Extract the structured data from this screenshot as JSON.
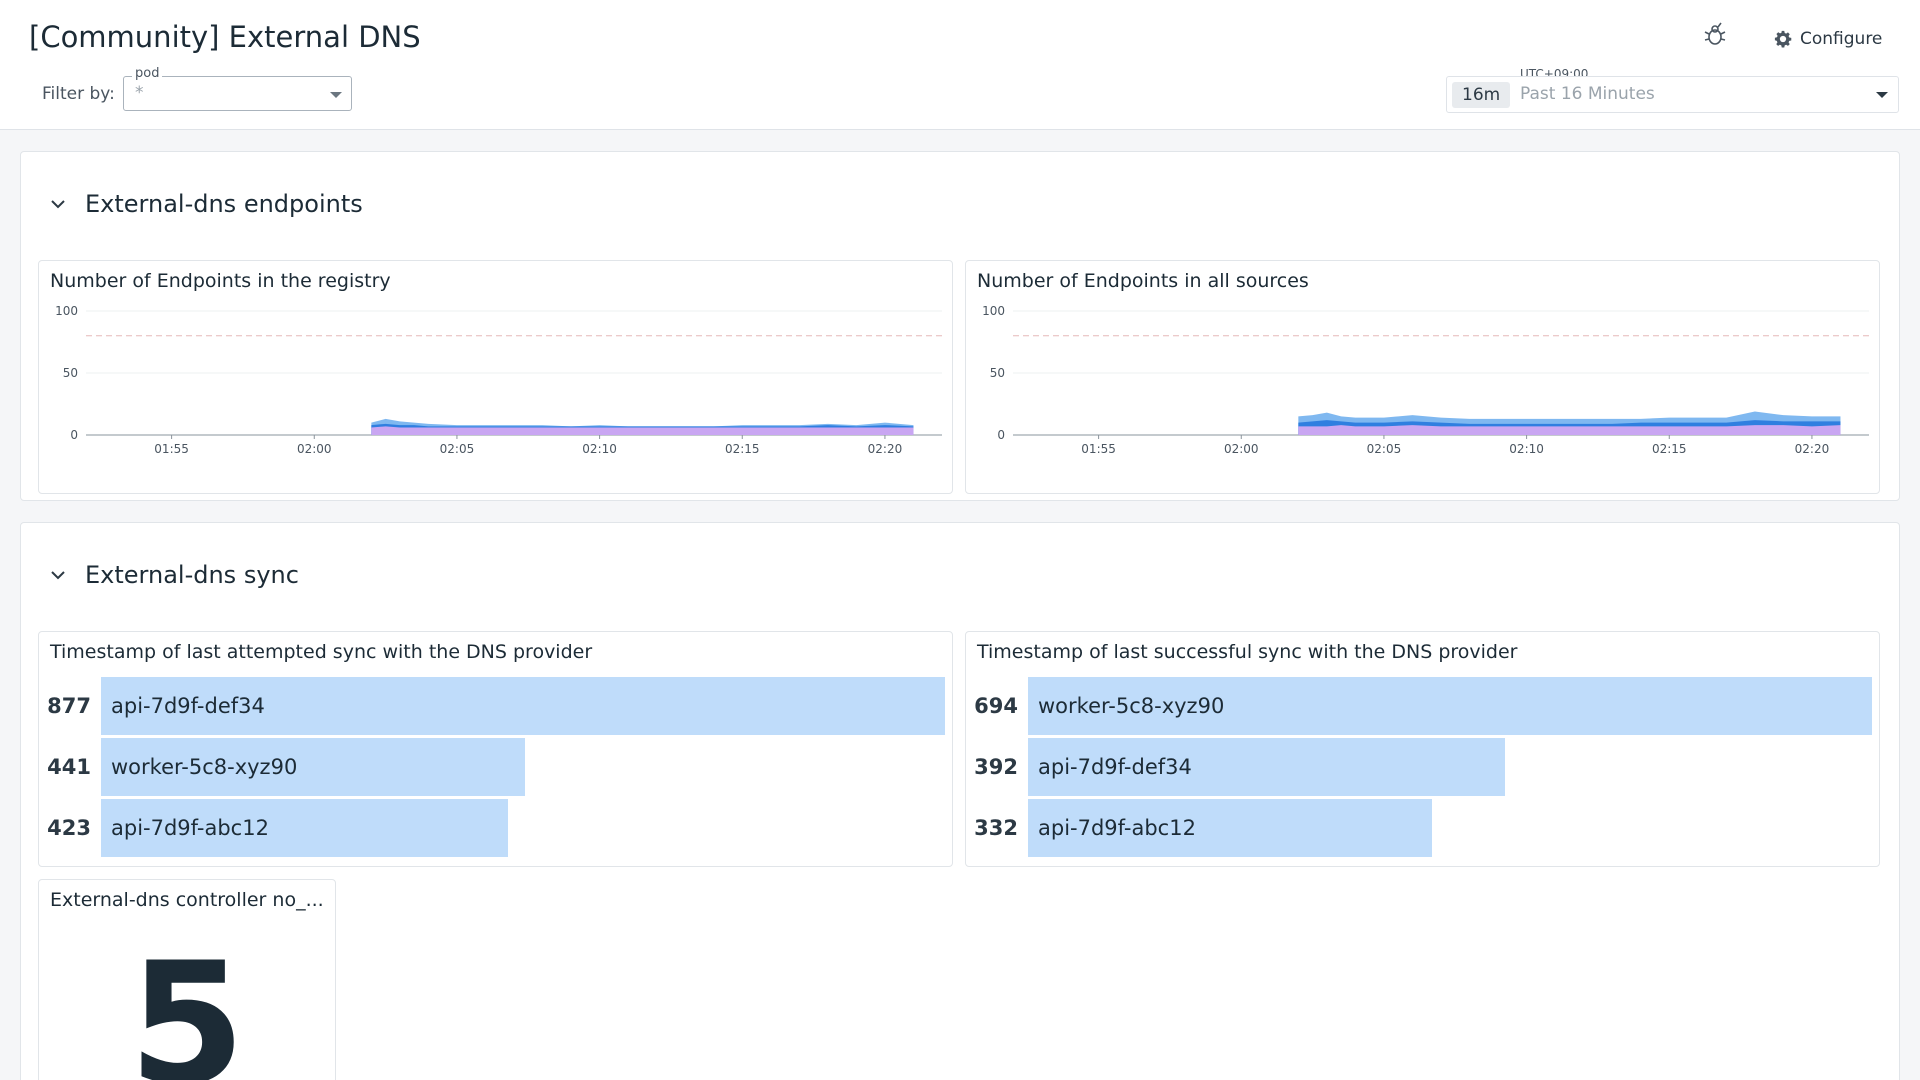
{
  "header": {
    "title": "[Community] External DNS",
    "filter_label": "Filter by:",
    "filter": {
      "name": "pod",
      "value": "*"
    },
    "configure_label": "Configure",
    "timezone": "UTC+09:00",
    "time_chip": "16m",
    "time_range": "Past 16 Minutes"
  },
  "groups": [
    {
      "title": "External-dns endpoints",
      "widgets": [
        {
          "title": "Number of Endpoints in the registry"
        },
        {
          "title": "Number of Endpoints in all sources"
        }
      ]
    },
    {
      "title": "External-dns sync",
      "widgets": [
        {
          "title": "Timestamp of last attempted sync with the DNS provider"
        },
        {
          "title": "Timestamp of last successful sync with the DNS provider"
        },
        {
          "title": "External-dns controller no_...",
          "value": "5"
        }
      ]
    }
  ],
  "chart_data": [
    {
      "type": "area",
      "title": "Number of Endpoints in the registry",
      "x": [
        "02:02",
        "02:02:30",
        "02:03",
        "02:03:30",
        "02:04",
        "02:05",
        "02:06",
        "02:07",
        "02:08",
        "02:09",
        "02:10",
        "02:11",
        "02:12",
        "02:13",
        "02:14",
        "02:15",
        "02:16",
        "02:17",
        "02:18",
        "02:19",
        "02:20",
        "02:21"
      ],
      "xticks": [
        "01:55",
        "02:00",
        "02:05",
        "02:10",
        "02:15",
        "02:20"
      ],
      "yticks": [
        0,
        50,
        100
      ],
      "ylim": [
        0,
        100
      ],
      "threshold": 80,
      "series": [
        {
          "values": [
            6,
            7,
            6,
            6,
            6,
            6,
            6,
            6,
            6,
            6,
            6,
            6,
            6,
            6,
            6,
            6,
            6,
            6,
            6,
            6,
            6,
            6
          ]
        },
        {
          "values": [
            8,
            9,
            8,
            8,
            7,
            7,
            7,
            7,
            7,
            7,
            7,
            7,
            7,
            7,
            7,
            7,
            7,
            7,
            8,
            7,
            8,
            7
          ]
        },
        {
          "values": [
            10,
            13,
            11,
            10,
            9,
            8,
            8,
            8,
            8,
            7,
            8,
            7,
            7,
            7,
            7,
            8,
            8,
            8,
            9,
            8,
            10,
            8
          ]
        }
      ],
      "legend": "none"
    },
    {
      "type": "area",
      "title": "Number of Endpoints in all sources",
      "x": [
        "02:02",
        "02:02:30",
        "02:03",
        "02:03:30",
        "02:04",
        "02:05",
        "02:06",
        "02:07",
        "02:08",
        "02:09",
        "02:10",
        "02:11",
        "02:12",
        "02:13",
        "02:14",
        "02:15",
        "02:16",
        "02:17",
        "02:18",
        "02:19",
        "02:20",
        "02:21"
      ],
      "xticks": [
        "01:55",
        "02:00",
        "02:05",
        "02:10",
        "02:15",
        "02:20"
      ],
      "yticks": [
        0,
        50,
        100
      ],
      "ylim": [
        0,
        100
      ],
      "threshold": 80,
      "series": [
        {
          "values": [
            7,
            7,
            7,
            8,
            7,
            7,
            8,
            7,
            7,
            7,
            7,
            7,
            7,
            7,
            7,
            7,
            7,
            7,
            8,
            8,
            7,
            8
          ]
        },
        {
          "values": [
            10,
            11,
            12,
            11,
            10,
            10,
            11,
            10,
            9,
            9,
            9,
            9,
            9,
            9,
            10,
            10,
            10,
            10,
            12,
            11,
            11,
            11
          ]
        },
        {
          "values": [
            15,
            16,
            18,
            15,
            14,
            14,
            16,
            14,
            13,
            13,
            13,
            13,
            13,
            13,
            13,
            14,
            14,
            14,
            19,
            16,
            15,
            15
          ]
        }
      ],
      "legend": "none"
    },
    {
      "type": "bar",
      "title": "Timestamp of last attempted sync with the DNS provider",
      "categories": [
        "api-7d9f-def34",
        "worker-5c8-xyz90",
        "api-7d9f-abc12"
      ],
      "values": [
        877,
        441,
        423
      ]
    },
    {
      "type": "bar",
      "title": "Timestamp of last successful sync with the DNS provider",
      "categories": [
        "worker-5c8-xyz90",
        "api-7d9f-def34",
        "api-7d9f-abc12"
      ],
      "values": [
        694,
        392,
        332
      ]
    }
  ],
  "colors": {
    "series": [
      "#c9a6f2",
      "#2f7fe0",
      "#7fb8f0"
    ],
    "threshold": "#e6b8b8",
    "bar": "#bfdcfa"
  }
}
